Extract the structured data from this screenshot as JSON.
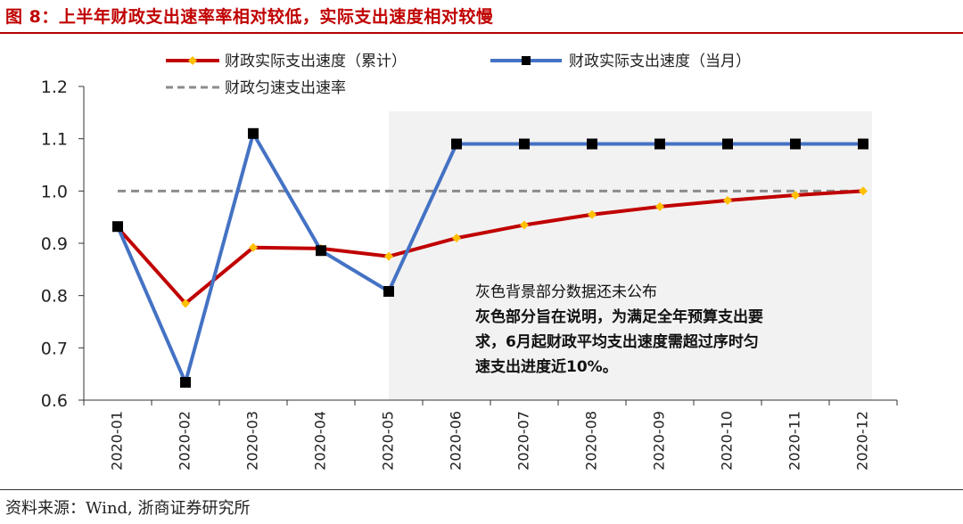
{
  "figure": {
    "title": "图 8：上半年财政支出速率率相对较低，实际支出速度相对较慢",
    "source": "资料来源：Wind, 浙商证券研究所",
    "title_color": "#c00000"
  },
  "chart_data": {
    "type": "line",
    "categories": [
      "2020-01",
      "2020-02",
      "2020-03",
      "2020-04",
      "2020-05",
      "2020-06",
      "2020-07",
      "2020-08",
      "2020-09",
      "2020-10",
      "2020-11",
      "2020-12"
    ],
    "ylim": [
      0.6,
      1.2
    ],
    "yticks": [
      "0.6",
      "0.7",
      "0.8",
      "0.9",
      "1.0",
      "1.1",
      "1.2"
    ],
    "grid": false,
    "legend_position": "top",
    "series": [
      {
        "name": "财政实际支出速度（累计）",
        "color": "#c00000",
        "marker": "diamond",
        "marker_color": "#ffc000",
        "values": [
          0.93,
          0.785,
          0.892,
          0.89,
          0.875,
          0.91,
          0.935,
          0.955,
          0.97,
          0.982,
          0.992,
          1.0
        ]
      },
      {
        "name": "财政实际支出速度（当月）",
        "color": "#4472c4",
        "marker": "square",
        "marker_color": "#000000",
        "values": [
          0.932,
          0.634,
          1.11,
          0.886,
          0.808,
          1.09,
          1.09,
          1.09,
          1.09,
          1.09,
          1.09,
          1.09
        ]
      },
      {
        "name": "财政匀速支出速率",
        "color": "#8c8c8c",
        "style": "dashed",
        "values": [
          1.0,
          1.0,
          1.0,
          1.0,
          1.0,
          1.0,
          1.0,
          1.0,
          1.0,
          1.0,
          1.0,
          1.0
        ]
      }
    ],
    "shaded_region": {
      "from": "2020-05",
      "to": "2020-12",
      "color": "#f2f2f2"
    },
    "annotation": {
      "line1": "灰色背景部分数据还未公布",
      "line2": "灰色部分旨在说明，为满足全年预算支出要",
      "line3": "求，6月起财政平均支出速度需超过序时匀",
      "line4": "速支出进度近10%。"
    }
  }
}
